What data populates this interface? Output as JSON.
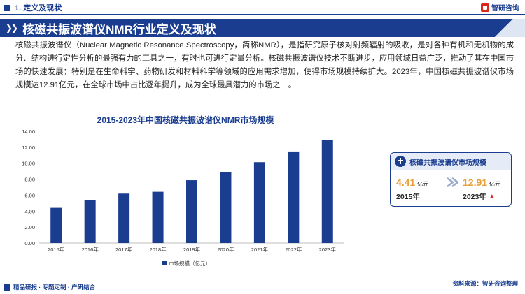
{
  "header": {
    "section": "1. 定义及现状",
    "brand": "智研咨询"
  },
  "title": "核磁共振波谱仪NMR行业定义及现状",
  "intro": "核磁共振波谱仪（Nuclear Magnetic Resonance Spectroscopy，简称NMR），是指研究原子核对射频辐射的吸收，是对各种有机和无机物的成分、结构进行定性分析的最强有力的工具之一，有时也可进行定量分析。核磁共振波谱仪技术不断进步，应用领域日益广泛，推动了其在中国市场的快速发展；特别是在生命科学、药物研发和材料科学等领域的应用需求增加，使得市场规模持续扩大。2023年，中国核磁共振波谱仪市场规模达12.91亿元，在全球市场中占比逐年提升，成为全球最具潜力的市场之一。",
  "chart_data": {
    "type": "bar",
    "title": "2015-2023年中国核磁共振波谱仪NMR市场规模",
    "categories": [
      "2015年",
      "2016年",
      "2017年",
      "2018年",
      "2019年",
      "2020年",
      "2021年",
      "2022年",
      "2023年"
    ],
    "series": [
      {
        "name": "市场规模（亿元）",
        "values": [
          4.41,
          5.35,
          6.19,
          6.42,
          7.87,
          8.84,
          10.13,
          11.47,
          12.91
        ]
      }
    ],
    "ylim": [
      0,
      14
    ],
    "yticks": [
      "0.00",
      "2.00",
      "4.00",
      "6.00",
      "8.00",
      "10.00",
      "12.00",
      "14.00"
    ],
    "grid": false,
    "legend": "bottom-left",
    "bar_color": "#1a3d8f"
  },
  "card": {
    "title": "核磁共振波谱仪市场规模",
    "start_value": "4.41",
    "start_unit": "亿元",
    "start_year": "2015年",
    "end_value": "12.91",
    "end_unit": "亿元",
    "end_year": "2023年",
    "trend_icon": "up-arrow-icon"
  },
  "footer": {
    "left": "精品研报 · 专题定制 · 产研结合",
    "right": "资料来源：智研咨询整理"
  },
  "colors": {
    "primary": "#1a3d8f",
    "accent": "#e8a13a",
    "alert": "#d9271c"
  }
}
